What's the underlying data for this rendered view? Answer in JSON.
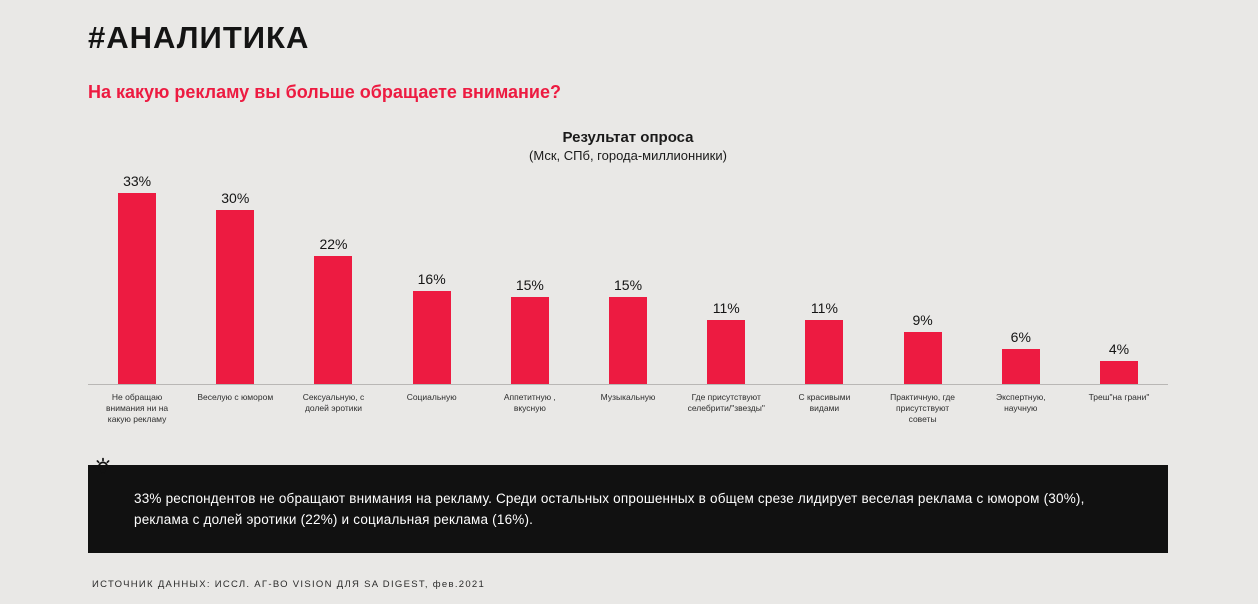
{
  "page": {
    "title": "#АНАЛИТИКА",
    "question": "На какую рекламу вы больше обращаете внимание?",
    "footer": "ИСТОЧНИК ДАННЫХ: ИССЛ. АГ-ВО VISION ДЛЯ SA DIGEST, фев.2021"
  },
  "colors": {
    "accent_red": "#ed1b41",
    "background": "#e9e8e6",
    "insight_bg": "#111111"
  },
  "chart_data": {
    "type": "bar",
    "title": "Результат опроса",
    "subtitle": "(Мск, СПб, города-миллионники)",
    "categories": [
      "Не обращаю внимания ни на какую рекламу",
      "Веселую с юмором",
      "Сексуальную, с долей эротики",
      "Социальную",
      "Аппетитную , вкусную",
      "Музыкальную",
      "Где присутствуют селебрити/\"звезды\"",
      "С красивыми видами",
      "Практичную, где присутствуют советы",
      "Экспертную, научную",
      "Треш\"на грани\""
    ],
    "values": [
      33,
      30,
      22,
      16,
      15,
      15,
      11,
      11,
      9,
      6,
      4
    ],
    "value_suffix": "%",
    "bar_color": "#ed1b41",
    "ylim": [
      0,
      35
    ],
    "grid": false,
    "legend": "none"
  },
  "insight": {
    "icon": "lightbulb-icon",
    "text": "33% респондентов не обращают внимания на рекламу. Среди остальных опрошенных в общем срезе лидирует веселая реклама с юмором (30%), реклама с долей эротики (22%) и социальная реклама (16%)."
  }
}
